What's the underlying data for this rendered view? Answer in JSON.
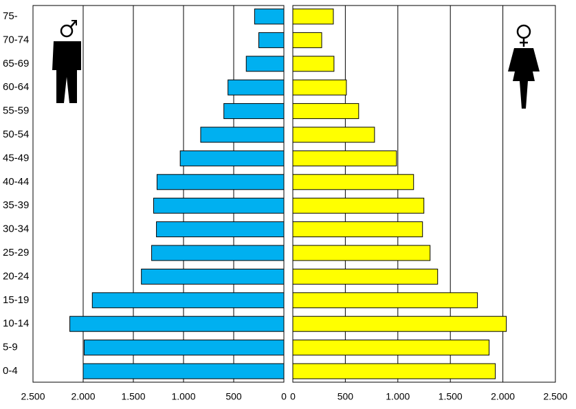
{
  "chart_data": [
    {
      "type": "bar",
      "orientation": "horizontal",
      "categories": [
        "0-4",
        "5-9",
        "10-14",
        "15-19",
        "20-24",
        "25-29",
        "30-34",
        "35-39",
        "40-44",
        "45-49",
        "50-54",
        "55-59",
        "60-64",
        "65-69",
        "70-74",
        "75-"
      ],
      "values": [
        2000,
        1990,
        2133,
        1909,
        1420,
        1318,
        1270,
        1298,
        1264,
        1033,
        829,
        598,
        557,
        375,
        250,
        292
      ],
      "color": "#00b0f0",
      "xlim": [
        2500,
        0
      ],
      "xticks": [
        {
          "value": 2500,
          "label": "2.500"
        },
        {
          "value": 2000,
          "label": "2.000"
        },
        {
          "value": 1500,
          "label": "1.500"
        },
        {
          "value": 1000,
          "label": "1.000"
        },
        500,
        0
      ],
      "grid": true
    },
    {
      "type": "bar",
      "orientation": "horizontal",
      "values": [
        1928,
        1869,
        2033,
        1758,
        1379,
        1307,
        1235,
        1248,
        1150,
        987,
        778,
        627,
        510,
        392,
        275,
        386
      ],
      "color": "#ffff00",
      "xlim": [
        0,
        2500
      ],
      "xticks": [
        0,
        500,
        {
          "value": 1000,
          "label": "1.000"
        },
        {
          "value": 1500,
          "label": "1.500"
        },
        {
          "value": 2000,
          "label": "2.000"
        },
        {
          "value": 2500,
          "label": "2.500"
        }
      ],
      "grid": true
    }
  ]
}
